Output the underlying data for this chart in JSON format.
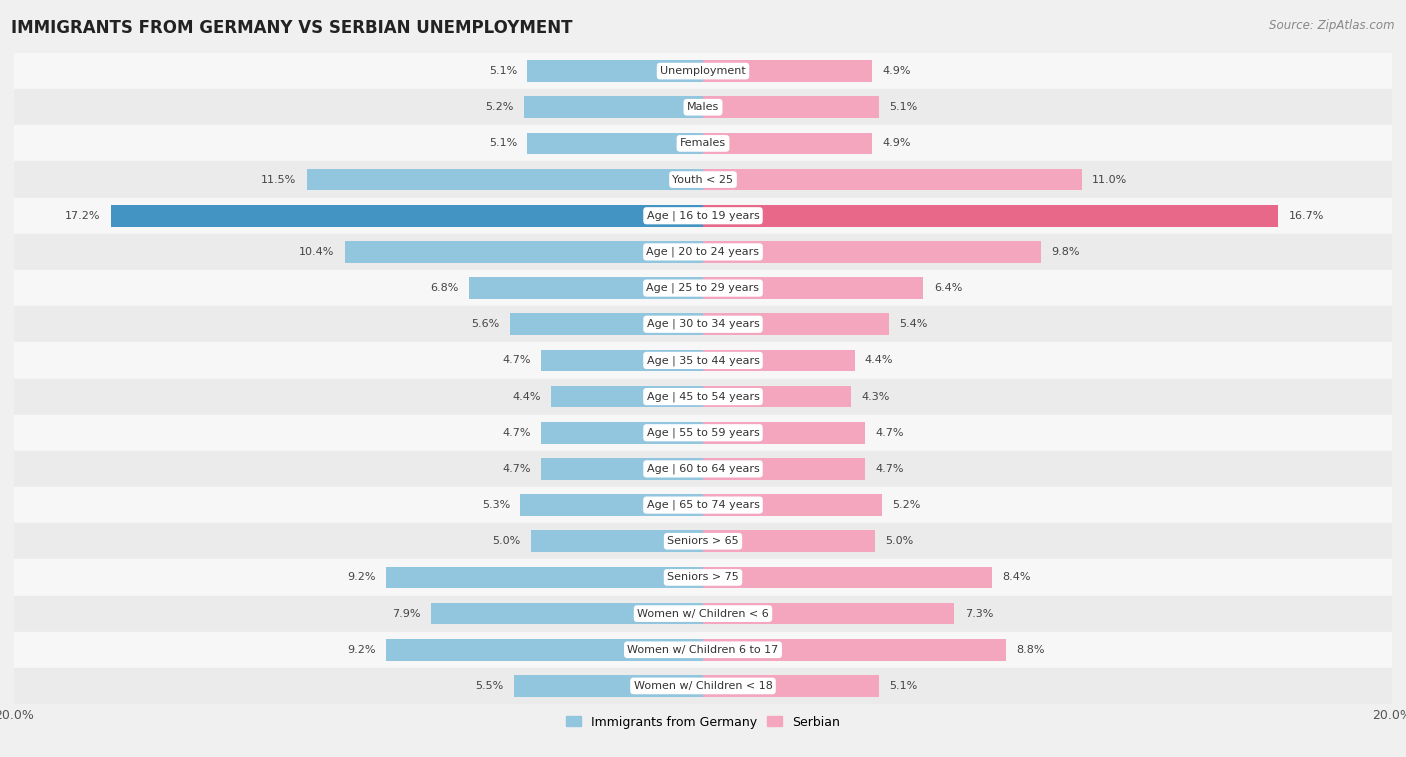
{
  "title": "IMMIGRANTS FROM GERMANY VS SERBIAN UNEMPLOYMENT",
  "source": "Source: ZipAtlas.com",
  "categories": [
    "Unemployment",
    "Males",
    "Females",
    "Youth < 25",
    "Age | 16 to 19 years",
    "Age | 20 to 24 years",
    "Age | 25 to 29 years",
    "Age | 30 to 34 years",
    "Age | 35 to 44 years",
    "Age | 45 to 54 years",
    "Age | 55 to 59 years",
    "Age | 60 to 64 years",
    "Age | 65 to 74 years",
    "Seniors > 65",
    "Seniors > 75",
    "Women w/ Children < 6",
    "Women w/ Children 6 to 17",
    "Women w/ Children < 18"
  ],
  "left_values": [
    5.1,
    5.2,
    5.1,
    11.5,
    17.2,
    10.4,
    6.8,
    5.6,
    4.7,
    4.4,
    4.7,
    4.7,
    5.3,
    5.0,
    9.2,
    7.9,
    9.2,
    5.5
  ],
  "right_values": [
    4.9,
    5.1,
    4.9,
    11.0,
    16.7,
    9.8,
    6.4,
    5.4,
    4.4,
    4.3,
    4.7,
    4.7,
    5.2,
    5.0,
    8.4,
    7.3,
    8.8,
    5.1
  ],
  "left_color": "#92c5de",
  "right_color": "#f4a6be",
  "highlight_left_color": "#4393c3",
  "highlight_right_color": "#e8688a",
  "highlight_index": 4,
  "xlim": 20.0,
  "row_colors": [
    "#f7f7f7",
    "#ebebeb"
  ],
  "background_color": "#f0f0f0",
  "legend_left": "Immigrants from Germany",
  "legend_right": "Serbian",
  "title_fontsize": 12,
  "source_fontsize": 8.5,
  "label_fontsize": 8,
  "value_fontsize": 8,
  "bar_height": 0.6
}
